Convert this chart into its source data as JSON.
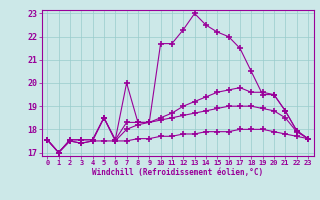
{
  "xlabel": "Windchill (Refroidissement éolien,°C)",
  "xlim": [
    -0.5,
    23.5
  ],
  "ylim": [
    16.85,
    23.15
  ],
  "yticks": [
    17,
    18,
    19,
    20,
    21,
    22,
    23
  ],
  "xticks": [
    0,
    1,
    2,
    3,
    4,
    5,
    6,
    7,
    8,
    9,
    10,
    11,
    12,
    13,
    14,
    15,
    16,
    17,
    18,
    19,
    20,
    21,
    22,
    23
  ],
  "bg_color": "#cce8e8",
  "grid_color": "#99cccc",
  "line_color": "#990099",
  "line1_y": [
    17.55,
    17.0,
    17.55,
    17.55,
    17.55,
    18.5,
    17.55,
    20.0,
    18.3,
    18.3,
    21.7,
    21.7,
    22.3,
    23.0,
    22.5,
    22.2,
    22.0,
    21.5,
    20.5,
    19.5,
    19.5,
    18.8,
    17.95,
    17.6
  ],
  "line2_y": [
    17.55,
    17.0,
    17.55,
    17.55,
    17.55,
    18.5,
    17.55,
    18.3,
    18.3,
    18.3,
    18.5,
    18.7,
    19.0,
    19.2,
    19.4,
    19.6,
    19.7,
    19.8,
    19.6,
    19.6,
    19.5,
    18.8,
    17.95,
    17.6
  ],
  "line3_y": [
    17.55,
    17.0,
    17.5,
    17.4,
    17.5,
    18.5,
    17.5,
    18.0,
    18.2,
    18.3,
    18.4,
    18.5,
    18.6,
    18.7,
    18.8,
    18.9,
    19.0,
    19.0,
    19.0,
    18.9,
    18.8,
    18.5,
    17.9,
    17.6
  ],
  "line4_y": [
    17.55,
    17.0,
    17.5,
    17.4,
    17.5,
    17.5,
    17.5,
    17.5,
    17.6,
    17.6,
    17.7,
    17.7,
    17.8,
    17.8,
    17.9,
    17.9,
    17.9,
    18.0,
    18.0,
    18.0,
    17.9,
    17.8,
    17.7,
    17.6
  ]
}
